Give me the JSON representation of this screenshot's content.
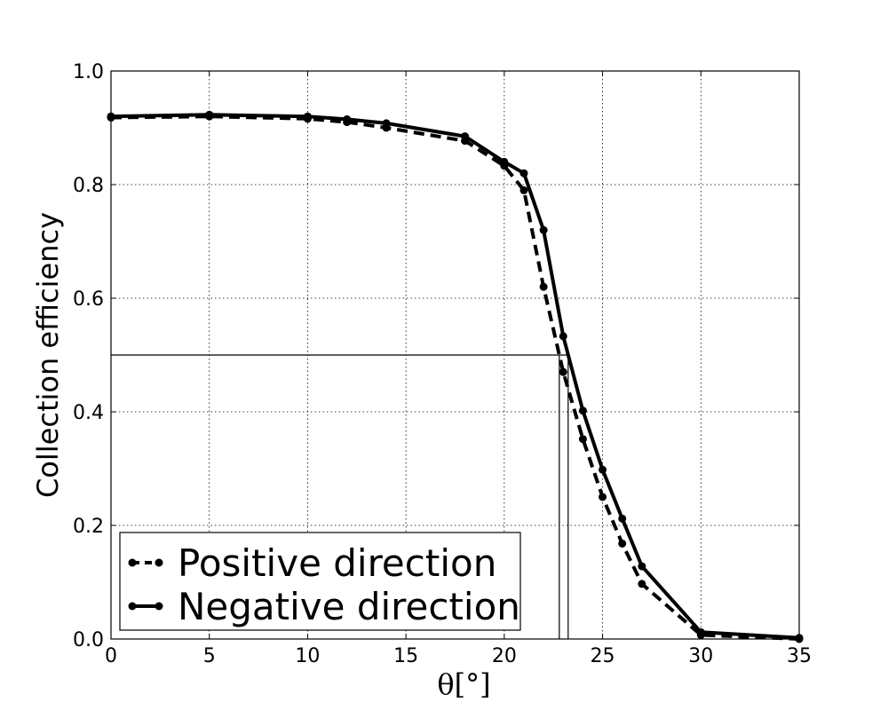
{
  "chart_data": {
    "type": "line",
    "title": "",
    "xlabel": "θ[°]",
    "ylabel": "Collection efficiency",
    "xlim": [
      0,
      35
    ],
    "ylim": [
      0,
      1.0
    ],
    "xticks": [
      "0",
      "5",
      "10",
      "15",
      "20",
      "25",
      "30",
      "35"
    ],
    "yticks": [
      "0.0",
      "0.2",
      "0.4",
      "0.6",
      "0.8",
      "1.0"
    ],
    "grid": true,
    "legend_position": "lower-left",
    "series": [
      {
        "name": "Positive direction",
        "style": "dashed",
        "color": "#000000",
        "x": [
          0,
          5,
          10,
          12,
          14,
          18,
          20,
          21,
          22,
          23,
          24,
          25,
          26,
          27,
          30,
          35
        ],
        "y": [
          0.918,
          0.92,
          0.916,
          0.91,
          0.9,
          0.877,
          0.833,
          0.79,
          0.62,
          0.47,
          0.352,
          0.25,
          0.168,
          0.097,
          0.007,
          0.0
        ]
      },
      {
        "name": "Negative direction",
        "style": "solid",
        "color": "#000000",
        "x": [
          0,
          5,
          10,
          12,
          14,
          18,
          20,
          21,
          22,
          23,
          24,
          25,
          26,
          27,
          30,
          35
        ],
        "y": [
          0.92,
          0.923,
          0.92,
          0.915,
          0.908,
          0.885,
          0.84,
          0.82,
          0.72,
          0.533,
          0.402,
          0.298,
          0.212,
          0.128,
          0.012,
          0.002
        ]
      }
    ],
    "reference_lines": {
      "y": 0.5,
      "x_positive": 22.8,
      "x_negative": 23.25
    }
  }
}
